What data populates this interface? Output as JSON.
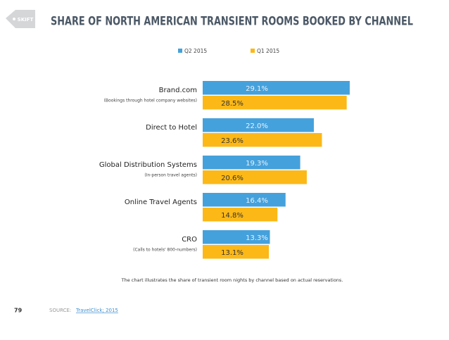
{
  "logo": "SKIFT",
  "page_number": "79",
  "source": {
    "label": "SOURCE:",
    "link": "TravelClick; 2015"
  },
  "chart_data": {
    "type": "bar",
    "orientation": "horizontal",
    "title": "SHARE OF NORTH AMERICAN TRANSIENT ROOMS BOOKED BY CHANNEL",
    "categories": [
      "Brand.com",
      "Direct to Hotel",
      "Global Distribution Systems",
      "Online Travel Agents",
      "CRO"
    ],
    "sublabels": [
      "(Bookings through hotel company websites)",
      null,
      "(In-person travel agents)",
      null,
      "(Calls to hotels' 800-numbers)"
    ],
    "series": [
      {
        "name": "Q2 2015",
        "color": "#45a1dc",
        "values": [
          29.1,
          22.0,
          19.3,
          16.4,
          13.3
        ],
        "value_labels": [
          "29.1%",
          "22.0%",
          "19.3%",
          "16.4%",
          "13.3%"
        ]
      },
      {
        "name": "Q1 2015",
        "color": "#fbb817",
        "values": [
          28.5,
          23.6,
          20.6,
          14.8,
          13.1
        ],
        "value_labels": [
          "28.5%",
          "23.6%",
          "20.6%",
          "14.8%",
          "13.1%"
        ]
      }
    ],
    "note": "The chart illustrates the share of transient room nights by channel based on actual reservations."
  }
}
